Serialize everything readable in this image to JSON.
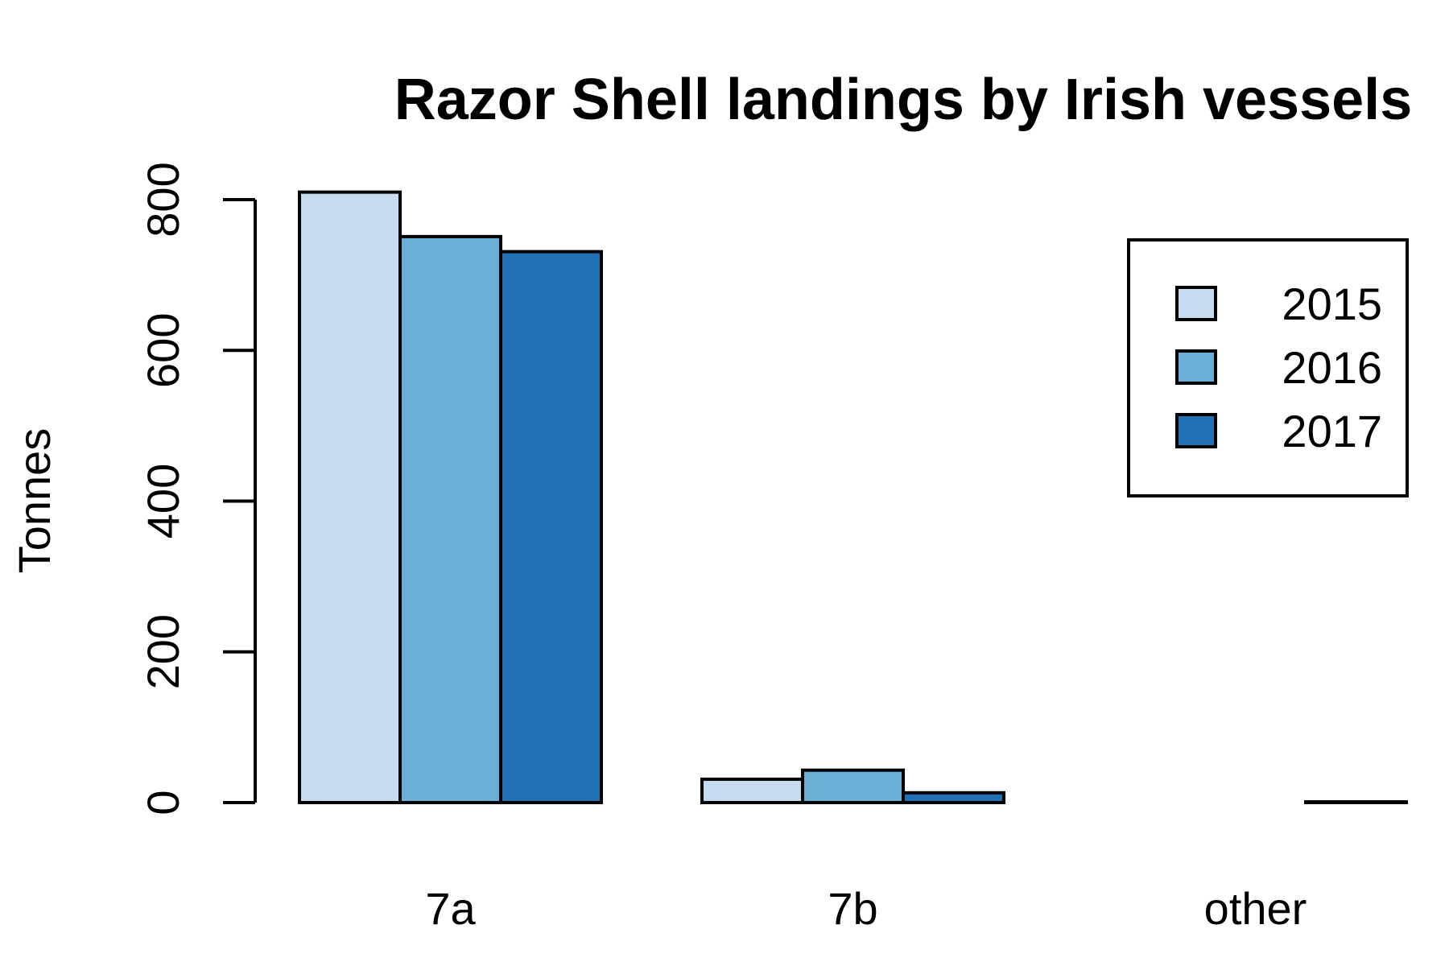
{
  "chart_data": {
    "type": "bar",
    "title": "Razor Shell landings by Irish vessels",
    "xlabel": "",
    "ylabel": "Tonnes",
    "categories": [
      "7a",
      "7b",
      "other"
    ],
    "series": [
      {
        "name": "2015",
        "color": "#c6dbef",
        "values": [
          810,
          31,
          0
        ]
      },
      {
        "name": "2016",
        "color": "#6baed6",
        "values": [
          751,
          43,
          0
        ]
      },
      {
        "name": "2017",
        "color": "#2171b5",
        "values": [
          731,
          13,
          1
        ]
      }
    ],
    "ylim": [
      0,
      800
    ],
    "yticks": [
      0,
      200,
      400,
      600,
      800
    ],
    "grid": false,
    "legend_position": "top-right"
  }
}
